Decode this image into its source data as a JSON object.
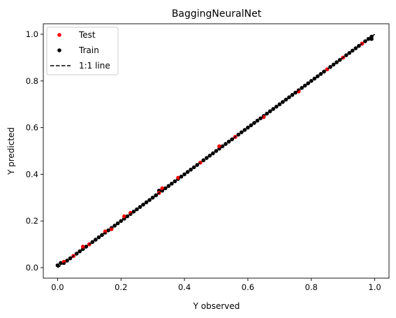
{
  "chart_data": {
    "type": "scatter",
    "title": "BaggingNeuralNet",
    "xlabel": "Y observed",
    "ylabel": "Y predicted",
    "xlim": [
      -0.045,
      1.045
    ],
    "ylim": [
      -0.045,
      1.045
    ],
    "xticks": [
      "0.0",
      "0.2",
      "0.4",
      "0.6",
      "0.8",
      "1.0"
    ],
    "yticks": [
      "0.0",
      "0.2",
      "0.4",
      "0.6",
      "0.8",
      "1.0"
    ],
    "xtick_values": [
      0,
      0.2,
      0.4,
      0.6,
      0.8,
      1.0
    ],
    "ytick_values": [
      0,
      0.2,
      0.4,
      0.6,
      0.8,
      1.0
    ],
    "grid": false,
    "legend_position": "top-left",
    "series": [
      {
        "name": "Test",
        "color": "#ff0000",
        "marker": "point",
        "points": [
          [
            0.02,
            0.025
          ],
          [
            0.05,
            0.05
          ],
          [
            0.08,
            0.09
          ],
          [
            0.1,
            0.1
          ],
          [
            0.15,
            0.155
          ],
          [
            0.17,
            0.165
          ],
          [
            0.21,
            0.22
          ],
          [
            0.23,
            0.235
          ],
          [
            0.32,
            0.32
          ],
          [
            0.33,
            0.34
          ],
          [
            0.38,
            0.385
          ],
          [
            0.45,
            0.45
          ],
          [
            0.51,
            0.52
          ],
          [
            0.56,
            0.56
          ],
          [
            0.65,
            0.645
          ],
          [
            0.76,
            0.755
          ],
          [
            0.85,
            0.85
          ],
          [
            0.9,
            0.9
          ],
          [
            0.96,
            0.96
          ]
        ]
      },
      {
        "name": "Train",
        "color": "#000000",
        "marker": "point",
        "points": [
          [
            0.0,
            0.01
          ],
          [
            0.01,
            0.02
          ],
          [
            0.02,
            0.02
          ],
          [
            0.03,
            0.03
          ],
          [
            0.04,
            0.04
          ],
          [
            0.05,
            0.05
          ],
          [
            0.06,
            0.06
          ],
          [
            0.07,
            0.07
          ],
          [
            0.08,
            0.08
          ],
          [
            0.09,
            0.09
          ],
          [
            0.1,
            0.1
          ],
          [
            0.11,
            0.11
          ],
          [
            0.12,
            0.12
          ],
          [
            0.13,
            0.13
          ],
          [
            0.14,
            0.14
          ],
          [
            0.15,
            0.15
          ],
          [
            0.16,
            0.16
          ],
          [
            0.17,
            0.17
          ],
          [
            0.18,
            0.18
          ],
          [
            0.19,
            0.19
          ],
          [
            0.2,
            0.2
          ],
          [
            0.21,
            0.21
          ],
          [
            0.22,
            0.22
          ],
          [
            0.23,
            0.23
          ],
          [
            0.24,
            0.24
          ],
          [
            0.25,
            0.25
          ],
          [
            0.26,
            0.26
          ],
          [
            0.27,
            0.27
          ],
          [
            0.28,
            0.28
          ],
          [
            0.29,
            0.29
          ],
          [
            0.3,
            0.3
          ],
          [
            0.31,
            0.31
          ],
          [
            0.32,
            0.33
          ],
          [
            0.33,
            0.33
          ],
          [
            0.34,
            0.34
          ],
          [
            0.35,
            0.35
          ],
          [
            0.36,
            0.36
          ],
          [
            0.37,
            0.37
          ],
          [
            0.38,
            0.38
          ],
          [
            0.39,
            0.39
          ],
          [
            0.4,
            0.4
          ],
          [
            0.41,
            0.41
          ],
          [
            0.42,
            0.42
          ],
          [
            0.43,
            0.43
          ],
          [
            0.44,
            0.44
          ],
          [
            0.46,
            0.46
          ],
          [
            0.47,
            0.47
          ],
          [
            0.48,
            0.48
          ],
          [
            0.49,
            0.49
          ],
          [
            0.5,
            0.5
          ],
          [
            0.51,
            0.51
          ],
          [
            0.52,
            0.52
          ],
          [
            0.53,
            0.53
          ],
          [
            0.54,
            0.54
          ],
          [
            0.55,
            0.55
          ],
          [
            0.56,
            0.56
          ],
          [
            0.57,
            0.57
          ],
          [
            0.58,
            0.58
          ],
          [
            0.59,
            0.59
          ],
          [
            0.6,
            0.6
          ],
          [
            0.61,
            0.61
          ],
          [
            0.62,
            0.62
          ],
          [
            0.63,
            0.63
          ],
          [
            0.64,
            0.64
          ],
          [
            0.65,
            0.65
          ],
          [
            0.66,
            0.66
          ],
          [
            0.67,
            0.67
          ],
          [
            0.68,
            0.68
          ],
          [
            0.69,
            0.69
          ],
          [
            0.7,
            0.7
          ],
          [
            0.71,
            0.71
          ],
          [
            0.72,
            0.72
          ],
          [
            0.73,
            0.73
          ],
          [
            0.74,
            0.74
          ],
          [
            0.75,
            0.75
          ],
          [
            0.76,
            0.76
          ],
          [
            0.77,
            0.77
          ],
          [
            0.78,
            0.78
          ],
          [
            0.79,
            0.79
          ],
          [
            0.8,
            0.8
          ],
          [
            0.81,
            0.81
          ],
          [
            0.82,
            0.82
          ],
          [
            0.83,
            0.83
          ],
          [
            0.84,
            0.84
          ],
          [
            0.85,
            0.85
          ],
          [
            0.86,
            0.86
          ],
          [
            0.87,
            0.87
          ],
          [
            0.88,
            0.88
          ],
          [
            0.89,
            0.89
          ],
          [
            0.9,
            0.9
          ],
          [
            0.91,
            0.91
          ],
          [
            0.92,
            0.92
          ],
          [
            0.93,
            0.93
          ],
          [
            0.94,
            0.94
          ],
          [
            0.95,
            0.95
          ],
          [
            0.96,
            0.96
          ],
          [
            0.97,
            0.97
          ],
          [
            0.98,
            0.98
          ],
          [
            0.99,
            0.98
          ],
          [
            0.99,
            0.99
          ]
        ]
      }
    ],
    "lines": [
      {
        "name": "1:1 line",
        "color": "#000000",
        "style": "dashed",
        "points": [
          [
            0.0,
            0.0
          ],
          [
            1.0,
            1.0
          ]
        ]
      }
    ]
  }
}
